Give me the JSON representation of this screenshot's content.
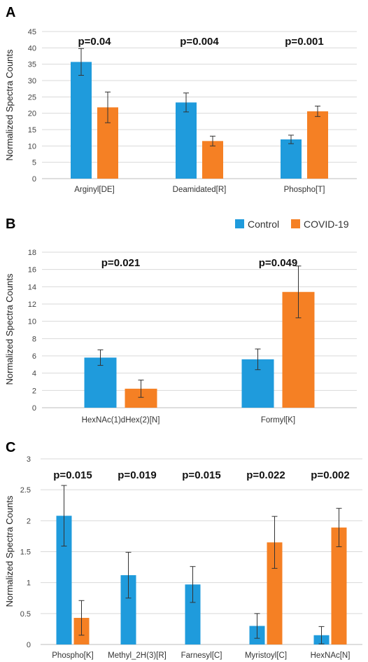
{
  "legend": {
    "items": [
      {
        "name": "Control",
        "color": "#1f9bdc"
      },
      {
        "name": "COVID-19",
        "color": "#f58024"
      }
    ]
  },
  "chart_data": [
    {
      "panel_label": "A",
      "type": "bar",
      "ylabel": "Normalized Spectra Counts",
      "ylim": [
        0,
        45
      ],
      "yticks": [
        "0",
        "5",
        "10",
        "15",
        "20",
        "25",
        "30",
        "35",
        "40",
        "45"
      ],
      "grid": true,
      "categories": [
        "Arginyl[DE]",
        "Deamidated[R]",
        "Phospho[T]"
      ],
      "series": [
        {
          "color": "#1f9bdc",
          "values": [
            35.7,
            23.3,
            12.0
          ],
          "errors": [
            4.1,
            2.9,
            1.3
          ]
        },
        {
          "color": "#f58024",
          "values": [
            21.8,
            11.5,
            20.6
          ],
          "errors": [
            4.7,
            1.5,
            1.6
          ]
        }
      ],
      "annotations": [
        "p=0.04",
        "p=0.004",
        "p=0.001"
      ]
    },
    {
      "panel_label": "B",
      "type": "bar",
      "ylabel": "Normalized Spectra Counts",
      "ylim": [
        0,
        18
      ],
      "yticks": [
        "0",
        "2",
        "4",
        "6",
        "8",
        "10",
        "12",
        "14",
        "16",
        "18"
      ],
      "grid": true,
      "legend_position": "top-right",
      "categories": [
        "HexNAc(1)dHex(2)[N]",
        "Formyl[K]"
      ],
      "series": [
        {
          "color": "#1f9bdc",
          "values": [
            5.8,
            5.6
          ],
          "errors": [
            0.9,
            1.2
          ]
        },
        {
          "color": "#f58024",
          "values": [
            2.2,
            13.4
          ],
          "errors": [
            1.0,
            3.0
          ]
        }
      ],
      "annotations": [
        "p=0.021",
        "p=0.049"
      ]
    },
    {
      "panel_label": "C",
      "type": "bar",
      "ylabel": "Normalized Spectra Counts",
      "ylim": [
        0,
        3
      ],
      "yticks": [
        "0",
        "0.5",
        "1",
        "1.5",
        "2",
        "2.5",
        "3"
      ],
      "grid": true,
      "categories": [
        "Phospho[K]",
        "Methyl_2H(3)[R]",
        "Farnesyl[C]",
        "Myristoyl[C]",
        "HexNAc[N]"
      ],
      "series": [
        {
          "color": "#1f9bdc",
          "values": [
            2.08,
            1.12,
            0.97,
            0.3,
            0.15
          ],
          "errors": [
            0.49,
            0.37,
            0.29,
            0.2,
            0.14
          ]
        },
        {
          "color": "#f58024",
          "values": [
            0.43,
            0,
            0,
            1.65,
            1.89
          ],
          "errors": [
            0.28,
            0,
            0,
            0.42,
            0.31
          ]
        }
      ],
      "annotations": [
        "p=0.015",
        "p=0.019",
        "p=0.015",
        "p=0.022",
        "p=0.002"
      ]
    }
  ]
}
